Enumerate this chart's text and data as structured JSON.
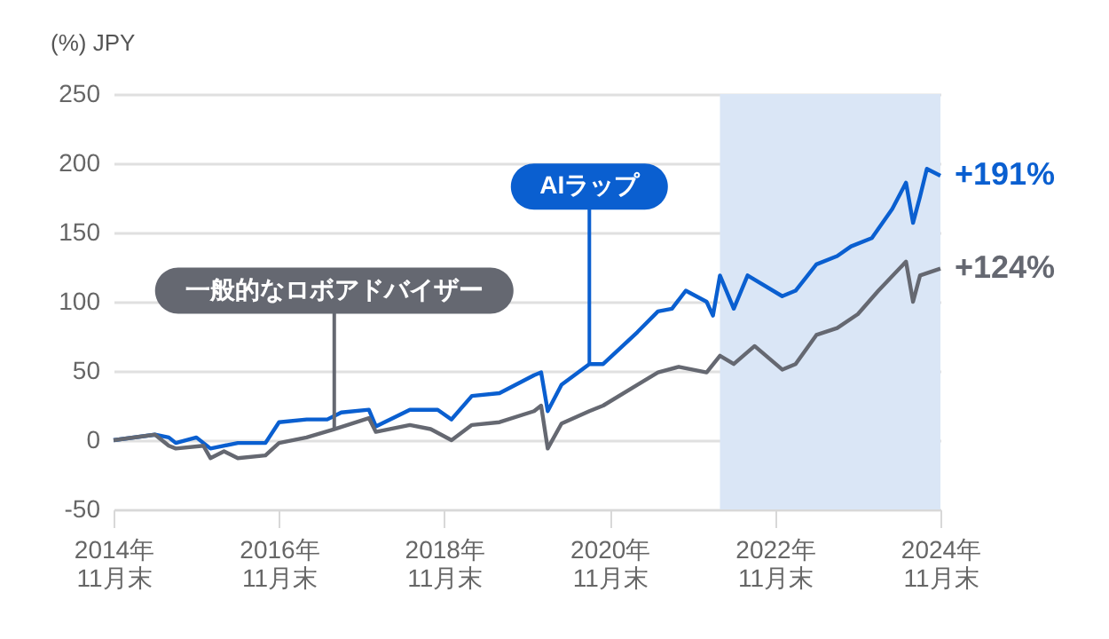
{
  "chart_data": {
    "type": "line",
    "ylabel": "(%) JPY",
    "xlim": [
      "2014-11-30",
      "2024-11-30"
    ],
    "xticks": [
      {
        "value": "2014-11-30",
        "label": "2014年\n11月末"
      },
      {
        "value": "2016-11-30",
        "label": "2016年\n11月末"
      },
      {
        "value": "2018-11-30",
        "label": "2018年\n11月末"
      },
      {
        "value": "2020-11-30",
        "label": "2020年\n11月末"
      },
      {
        "value": "2022-11-30",
        "label": "2022年\n11月末"
      },
      {
        "value": "2024-11-30",
        "label": "2024年\n11月末"
      }
    ],
    "ylim": [
      -50,
      250
    ],
    "yticks": [
      -50,
      0,
      50,
      100,
      150,
      200,
      250
    ],
    "grid": "y",
    "legend": false,
    "series": [
      {
        "name": "AIラップ",
        "color": "#0a5fd0",
        "x": [
          "2014-11-30",
          "2015-06",
          "2015-08",
          "2015-09",
          "2015-12",
          "2016-01",
          "2016-02",
          "2016-06",
          "2016-07",
          "2016-10",
          "2016-11-30",
          "2017-04",
          "2017-07",
          "2017-09",
          "2018-01",
          "2018-02",
          "2018-07",
          "2018-11",
          "2019-01",
          "2019-04",
          "2019-08",
          "2020-01",
          "2020-02",
          "2020-03",
          "2020-05",
          "2020-09",
          "2020-11",
          "2021-04",
          "2021-07",
          "2021-09",
          "2021-11",
          "2022-02",
          "2022-03",
          "2022-04",
          "2022-06",
          "2022-08",
          "2023-01",
          "2023-03",
          "2023-06",
          "2023-09",
          "2023-11",
          "2024-02",
          "2024-05",
          "2024-07",
          "2024-08",
          "2024-09",
          "2024-10",
          "2024-11-30"
        ],
        "values": [
          0,
          4,
          2,
          -2,
          2,
          -2,
          -6,
          -2,
          -2,
          -2,
          13,
          15,
          15,
          20,
          22,
          10,
          22,
          22,
          15,
          32,
          34,
          47,
          49,
          21,
          40,
          55,
          55,
          78,
          93,
          95,
          108,
          100,
          90,
          119,
          95,
          119,
          104,
          108,
          127,
          133,
          140,
          146,
          167,
          186,
          157,
          176,
          196,
          191
        ]
      },
      {
        "name": "一般的なロボアドバイザー",
        "color": "#656871",
        "x": [
          "2014-11-30",
          "2015-06",
          "2015-08",
          "2015-09",
          "2016-01",
          "2016-02",
          "2016-04",
          "2016-06",
          "2016-10",
          "2016-11-30",
          "2017-04",
          "2017-08",
          "2018-01",
          "2018-02",
          "2018-07",
          "2018-10",
          "2019-01",
          "2019-04",
          "2019-08",
          "2020-01",
          "2020-02",
          "2020-03",
          "2020-05",
          "2020-09",
          "2020-11",
          "2021-04",
          "2021-07",
          "2021-10",
          "2022-02",
          "2022-04",
          "2022-06",
          "2022-09",
          "2023-01",
          "2023-03",
          "2023-06",
          "2023-09",
          "2023-12",
          "2024-03",
          "2024-07",
          "2024-08",
          "2024-09",
          "2024-11-30"
        ],
        "values": [
          0,
          4,
          -4,
          -6,
          -4,
          -13,
          -8,
          -13,
          -11,
          -2,
          2,
          8,
          16,
          6,
          11,
          8,
          0,
          11,
          13,
          21,
          25,
          -6,
          12,
          21,
          25,
          40,
          49,
          53,
          49,
          61,
          55,
          68,
          51,
          55,
          76,
          81,
          91,
          108,
          129,
          100,
          119,
          124
        ]
      }
    ],
    "bands": [
      {
        "axis": "x",
        "from": "2022-04",
        "to": "2024-11-30",
        "color": "#dae6f6"
      }
    ],
    "annotations": [
      {
        "text": "+191%",
        "x": "2024-11-30",
        "y": 191
      },
      {
        "text": "+124%",
        "x": "2024-11-30",
        "y": 124
      }
    ]
  }
}
